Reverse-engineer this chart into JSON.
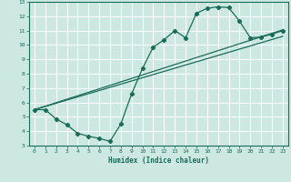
{
  "xlabel": "Humidex (Indice chaleur)",
  "xlim": [
    -0.5,
    23.5
  ],
  "ylim": [
    3,
    13
  ],
  "xticks": [
    0,
    1,
    2,
    3,
    4,
    5,
    6,
    7,
    8,
    9,
    10,
    11,
    12,
    13,
    14,
    15,
    16,
    17,
    18,
    19,
    20,
    21,
    22,
    23
  ],
  "yticks": [
    3,
    4,
    5,
    6,
    7,
    8,
    9,
    10,
    11,
    12,
    13
  ],
  "bg_color": "#cce8e0",
  "grid_color": "#ffffff",
  "line_color": "#1a6b5a",
  "line1_x": [
    0,
    1,
    2,
    3,
    4,
    5,
    6,
    7,
    8,
    9,
    10,
    11,
    12,
    13,
    14,
    15,
    16,
    17,
    18,
    19,
    20,
    21,
    22,
    23
  ],
  "line1_y": [
    5.5,
    5.5,
    4.85,
    4.45,
    3.85,
    3.65,
    3.5,
    3.3,
    4.5,
    6.6,
    8.35,
    9.85,
    10.35,
    11.0,
    10.5,
    12.2,
    12.55,
    12.65,
    12.6,
    11.65,
    10.5,
    10.55,
    10.75,
    11.0
  ],
  "line2_x": [
    0,
    23
  ],
  "line2_y": [
    5.5,
    11.05
  ],
  "line3_x": [
    0,
    23
  ],
  "line3_y": [
    5.5,
    10.6
  ]
}
